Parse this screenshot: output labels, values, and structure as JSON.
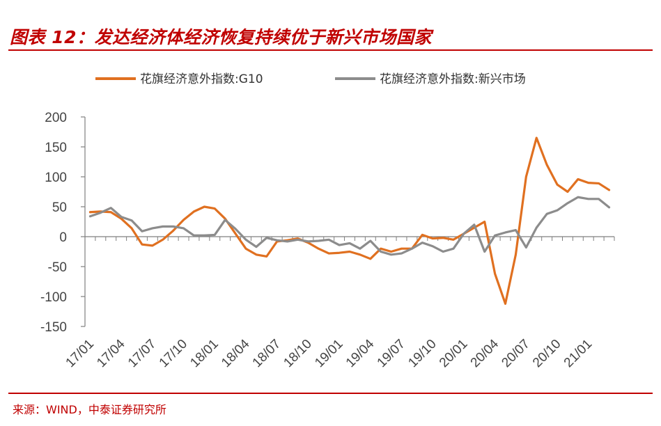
{
  "header": {
    "title": "图表 12：发达经济体经济恢复持续优于新兴市场国家"
  },
  "footer": {
    "source": "来源：WIND，中泰证券研究所"
  },
  "colors": {
    "brand": "#c00000",
    "series_g10": "#e07020",
    "series_em": "#8c8c8c",
    "axis": "#7f7f7f"
  },
  "chart_data": {
    "type": "line",
    "title": "",
    "xlabel": "",
    "ylabel": "",
    "ylim": [
      -150,
      200
    ],
    "yticks": [
      200,
      150,
      100,
      50,
      0,
      -50,
      -100,
      -150
    ],
    "grid": false,
    "legend_position": "top",
    "x": [
      "17/01",
      "17/02",
      "17/03",
      "17/04",
      "17/05",
      "17/06",
      "17/07",
      "17/08",
      "17/09",
      "17/10",
      "17/11",
      "17/12",
      "18/01",
      "18/02",
      "18/03",
      "18/04",
      "18/05",
      "18/06",
      "18/07",
      "18/08",
      "18/09",
      "18/10",
      "18/11",
      "18/12",
      "19/01",
      "19/02",
      "19/03",
      "19/04",
      "19/05",
      "19/06",
      "19/07",
      "19/08",
      "19/09",
      "19/10",
      "19/11",
      "19/12",
      "20/01",
      "20/02",
      "20/03",
      "20/04",
      "20/05",
      "20/06",
      "20/07",
      "20/08",
      "20/09",
      "20/10",
      "20/11",
      "20/12",
      "21/01",
      "21/02",
      "21/03"
    ],
    "xticks": [
      "17/01",
      "17/04",
      "17/07",
      "17/10",
      "18/01",
      "18/04",
      "18/07",
      "18/10",
      "19/01",
      "19/04",
      "19/07",
      "19/10",
      "20/01",
      "20/04",
      "20/07",
      "20/10",
      "21/01"
    ],
    "series": [
      {
        "name": "花旗经济意外指数:G10",
        "color": "#e07020",
        "values": [
          41,
          42,
          41,
          30,
          14,
          -13,
          -15,
          -5,
          10,
          28,
          42,
          50,
          47,
          30,
          5,
          -20,
          -30,
          -33,
          -8,
          -6,
          -3,
          -10,
          -20,
          -28,
          -27,
          -25,
          -30,
          -37,
          -20,
          -25,
          -20,
          -20,
          3,
          -3,
          -2,
          -5,
          5,
          15,
          25,
          -62,
          -112,
          -30,
          100,
          165,
          120,
          87,
          75,
          96,
          90,
          89,
          78
        ]
      },
      {
        "name": "花旗经济意外指数:新兴市场",
        "color": "#8c8c8c",
        "values": [
          34,
          40,
          48,
          33,
          27,
          9,
          14,
          17,
          17,
          14,
          2,
          2,
          3,
          28,
          13,
          -5,
          -17,
          -2,
          -6,
          -8,
          -5,
          -8,
          -7,
          -5,
          -14,
          -11,
          -20,
          -7,
          -25,
          -30,
          -28,
          -20,
          -10,
          -16,
          -25,
          -20,
          5,
          20,
          -25,
          2,
          7,
          11,
          -18,
          15,
          38,
          44,
          56,
          66,
          63,
          63,
          49
        ]
      }
    ]
  }
}
